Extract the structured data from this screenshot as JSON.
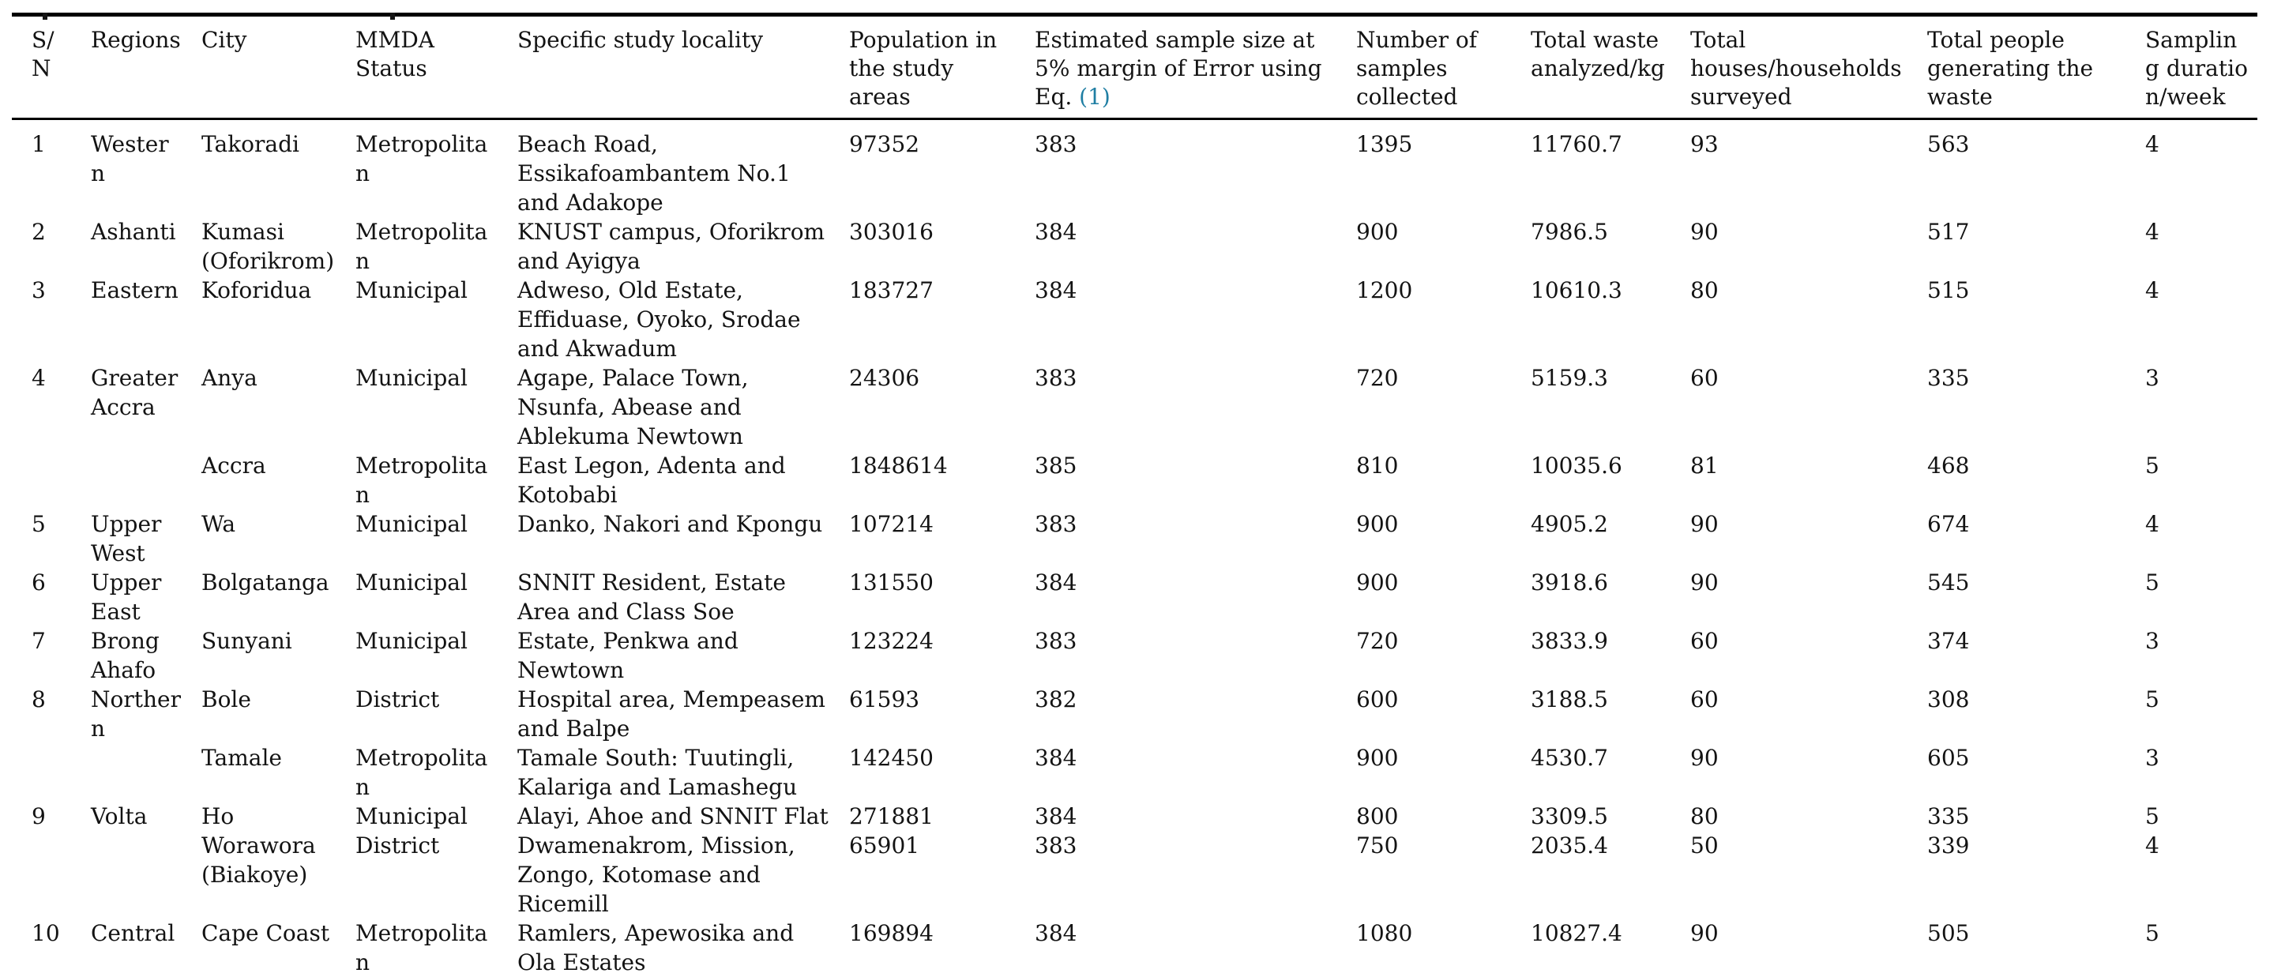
{
  "styles": {
    "link_color": "#1f7ea3",
    "rule_color": "#000000",
    "text_color": "#131313",
    "background": "#ffffff"
  },
  "table": {
    "columns": [
      "S/N",
      "Regions",
      "City",
      "MMDA Status",
      "Specific study locality",
      "Population in the study areas",
      "Estimated sample size at 5% margin of Error using Eq.",
      "Number of samples collected",
      "Total waste analyzed/kg",
      "Total houses/households surveyed",
      "Total people generating the waste",
      "Sampling duration/week"
    ],
    "eq_link": "(1)",
    "rows": [
      [
        "1",
        "Western",
        "Takoradi",
        "Metropolitan",
        "Beach Road, Essikafoambantem No.1 and Adakope",
        "97352",
        "383",
        "1395",
        "11760.7",
        "93",
        "563",
        "4"
      ],
      [
        "2",
        "Ashanti",
        "Kumasi (Oforikrom)",
        "Metropolitan",
        "KNUST campus, Oforikrom and Ayigya",
        "303016",
        "384",
        "900",
        "7986.5",
        "90",
        "517",
        "4"
      ],
      [
        "3",
        "Eastern",
        "Koforidua",
        "Municipal",
        "Adweso, Old Estate, Effiduase, Oyoko, Srodae and Akwadum",
        "183727",
        "384",
        "1200",
        "10610.3",
        "80",
        "515",
        "4"
      ],
      [
        "4",
        "Greater Accra",
        "Anya",
        "Municipal",
        "Agape, Palace Town, Nsunfa, Abease and Ablekuma Newtown",
        "24306",
        "383",
        "720",
        "5159.3",
        "60",
        "335",
        "3"
      ],
      [
        "",
        "",
        "Accra",
        "Metropolitan",
        "East Legon, Adenta and Kotobabi",
        "1848614",
        "385",
        "810",
        "10035.6",
        "81",
        "468",
        "5"
      ],
      [
        "5",
        "Upper West",
        "Wa",
        "Municipal",
        "Danko, Nakori and Kpongu",
        "107214",
        "383",
        "900",
        "4905.2",
        "90",
        "674",
        "4"
      ],
      [
        "6",
        "Upper East",
        "Bolgatanga",
        "Municipal",
        "SNNIT Resident, Estate Area and Class Soe",
        "131550",
        "384",
        "900",
        "3918.6",
        "90",
        "545",
        "5"
      ],
      [
        "7",
        "Brong Ahafo",
        "Sunyani",
        "Municipal",
        "Estate, Penkwa and Newtown",
        "123224",
        "383",
        "720",
        "3833.9",
        "60",
        "374",
        "3"
      ],
      [
        "8",
        "Northern",
        "Bole",
        "District",
        "Hospital area, Mempeasem and Balpe",
        "61593",
        "382",
        "600",
        "3188.5",
        "60",
        "308",
        "5"
      ],
      [
        "",
        "",
        "Tamale",
        "Metropolitan",
        "Tamale South: Tuutingli, Kalariga and Lamashegu",
        "142450",
        "384",
        "900",
        "4530.7",
        "90",
        "605",
        "3"
      ],
      [
        "9",
        "Volta",
        "Ho",
        "Municipal",
        "Alayi, Ahoe and SNNIT Flat",
        "271881",
        "384",
        "800",
        "3309.5",
        "80",
        "335",
        "5"
      ],
      [
        "",
        "",
        "Worawora (Biakoye)",
        "District",
        "Dwamenakrom, Mission, Zongo, Kotomase and Ricemill",
        "65901",
        "383",
        "750",
        "2035.4",
        "50",
        "339",
        "4"
      ],
      [
        "10",
        "Central",
        "Cape Coast",
        "Metropolitan",
        "Ramlers, Apewosika and Ola Estates",
        "169894",
        "384",
        "1080",
        "10827.4",
        "90",
        "505",
        "5"
      ]
    ]
  }
}
